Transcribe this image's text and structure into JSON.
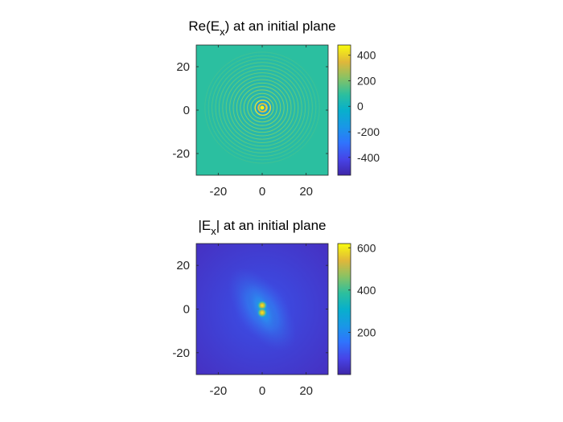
{
  "chart_data": [
    {
      "type": "heatmap",
      "title": {
        "prefix": "Re(E",
        "sub": "x",
        "suffix": ") at an initial plane"
      },
      "xlim": [
        -30,
        30
      ],
      "ylim": [
        -30,
        30
      ],
      "xticks": [
        -20,
        0,
        20
      ],
      "yticks": [
        20,
        0,
        -20
      ],
      "xtick_labels": [
        "-20",
        "0",
        "20"
      ],
      "ytick_labels": [
        "20",
        "0",
        "-20"
      ],
      "colorbar": {
        "clim": [
          -540,
          480
        ],
        "ticks": [
          400,
          200,
          0,
          -200,
          -400
        ],
        "labels": [
          "400",
          "200",
          "0",
          "-200",
          "-400"
        ]
      },
      "colormap": "parula",
      "field": "real part of a focused vortex field: spiral ring pattern centered at (0,0), amplitude decaying with radius"
    },
    {
      "type": "heatmap",
      "title": {
        "prefix": "|E",
        "sub": "x",
        "suffix": "| at an initial plane"
      },
      "xlim": [
        -30,
        30
      ],
      "ylim": [
        -30,
        30
      ],
      "xticks": [
        -20,
        0,
        20
      ],
      "yticks": [
        20,
        0,
        -20
      ],
      "xtick_labels": [
        "-20",
        "0",
        "20"
      ],
      "ytick_labels": [
        "20",
        "0",
        "-20"
      ],
      "colorbar": {
        "clim": [
          0,
          620
        ],
        "ticks": [
          600,
          400,
          200
        ],
        "labels": [
          "600",
          "400",
          "200"
        ]
      },
      "colormap": "parula",
      "field": "magnitude: two bright lobes near (0,1) and (0,-1), brighter cone along a diagonal, dark background"
    }
  ]
}
